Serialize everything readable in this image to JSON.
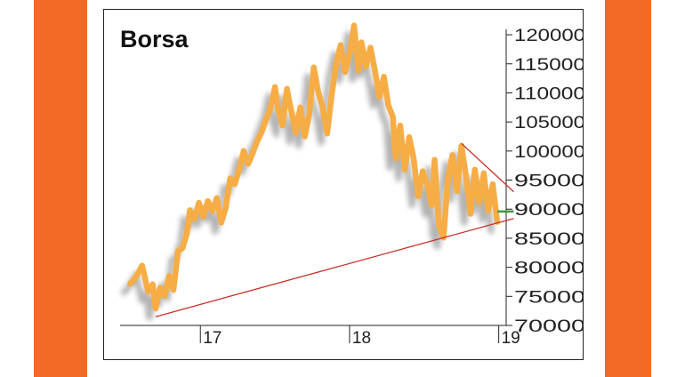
{
  "colors": {
    "orange_band": "#f26a24",
    "line": "#f7ad45",
    "shadow": "#9a9a9a",
    "trend": "#c8322c",
    "current": "#3c9a3c",
    "axis": "#222222"
  },
  "chart_data": {
    "type": "line",
    "title": "Borsa",
    "xlabel": "",
    "ylabel": "",
    "ylim": [
      70000,
      122000
    ],
    "xlim": [
      2016.45,
      2019.05
    ],
    "y_ticks": [
      "120000",
      "115000",
      "110000",
      "105000",
      "100000",
      "95000",
      "90000",
      "85000",
      "80000",
      "75000",
      "70000"
    ],
    "y_tick_values": [
      120000,
      115000,
      110000,
      105000,
      100000,
      95000,
      90000,
      85000,
      80000,
      75000,
      70000
    ],
    "x_ticks": [
      "17",
      "18",
      "19"
    ],
    "x_tick_values": [
      2017.0,
      2018.0,
      2019.0
    ],
    "grid": false,
    "y_axis_side": "right",
    "series": [
      {
        "points": [
          [
            2016.53,
            77200
          ],
          [
            2016.57,
            78400
          ],
          [
            2016.61,
            80300
          ],
          [
            2016.65,
            75800
          ],
          [
            2016.68,
            77100
          ],
          [
            2016.7,
            72900
          ],
          [
            2016.73,
            76500
          ],
          [
            2016.76,
            75100
          ],
          [
            2016.79,
            78500
          ],
          [
            2016.82,
            76100
          ],
          [
            2016.85,
            82800
          ],
          [
            2016.88,
            83300
          ],
          [
            2016.91,
            85800
          ],
          [
            2016.93,
            89800
          ],
          [
            2016.96,
            88300
          ],
          [
            2016.99,
            91100
          ],
          [
            2017.02,
            88700
          ],
          [
            2017.05,
            91400
          ],
          [
            2017.08,
            89700
          ],
          [
            2017.11,
            91900
          ],
          [
            2017.14,
            87700
          ],
          [
            2017.17,
            90200
          ],
          [
            2017.2,
            95300
          ],
          [
            2017.23,
            94300
          ],
          [
            2017.26,
            96800
          ],
          [
            2017.29,
            100000
          ],
          [
            2017.32,
            97800
          ],
          [
            2017.35,
            99600
          ],
          [
            2017.38,
            101700
          ],
          [
            2017.41,
            103200
          ],
          [
            2017.44,
            105400
          ],
          [
            2017.47,
            107400
          ],
          [
            2017.5,
            111000
          ],
          [
            2017.52,
            107400
          ],
          [
            2017.55,
            104400
          ],
          [
            2017.58,
            110700
          ],
          [
            2017.61,
            106800
          ],
          [
            2017.64,
            103100
          ],
          [
            2017.67,
            107500
          ],
          [
            2017.7,
            102500
          ],
          [
            2017.73,
            106300
          ],
          [
            2017.76,
            114400
          ],
          [
            2017.79,
            110200
          ],
          [
            2017.82,
            107400
          ],
          [
            2017.85,
            103000
          ],
          [
            2017.88,
            109600
          ],
          [
            2017.91,
            114900
          ],
          [
            2017.94,
            118200
          ],
          [
            2017.97,
            113600
          ],
          [
            2018.0,
            116600
          ],
          [
            2018.03,
            121600
          ],
          [
            2018.06,
            113800
          ],
          [
            2018.08,
            118700
          ],
          [
            2018.11,
            114500
          ],
          [
            2018.14,
            117800
          ],
          [
            2018.17,
            113900
          ],
          [
            2018.2,
            109300
          ],
          [
            2018.23,
            112800
          ],
          [
            2018.26,
            107900
          ],
          [
            2018.29,
            105900
          ],
          [
            2018.31,
            98700
          ],
          [
            2018.34,
            104400
          ],
          [
            2018.37,
            96800
          ],
          [
            2018.4,
            102400
          ],
          [
            2018.43,
            98700
          ],
          [
            2018.46,
            92200
          ],
          [
            2018.49,
            96500
          ],
          [
            2018.52,
            94400
          ],
          [
            2018.55,
            90600
          ],
          [
            2018.57,
            98500
          ],
          [
            2018.6,
            87100
          ],
          [
            2018.63,
            85100
          ],
          [
            2018.66,
            95400
          ],
          [
            2018.69,
            99300
          ],
          [
            2018.72,
            93100
          ],
          [
            2018.75,
            100900
          ],
          [
            2018.78,
            95800
          ],
          [
            2018.81,
            89200
          ],
          [
            2018.84,
            96800
          ],
          [
            2018.87,
            91100
          ],
          [
            2018.9,
            96200
          ],
          [
            2018.93,
            89700
          ],
          [
            2018.96,
            94300
          ],
          [
            2018.99,
            87800
          ]
        ]
      }
    ],
    "trend_lines": [
      {
        "from": [
          2016.7,
          71500
        ],
        "to": [
          2019.1,
          88400
        ]
      },
      {
        "from": [
          2018.75,
          101300
        ],
        "to": [
          2019.1,
          93000
        ]
      }
    ],
    "current_level": {
      "from": [
        2018.99,
        89600
      ],
      "to": [
        2019.1,
        89600
      ]
    }
  }
}
